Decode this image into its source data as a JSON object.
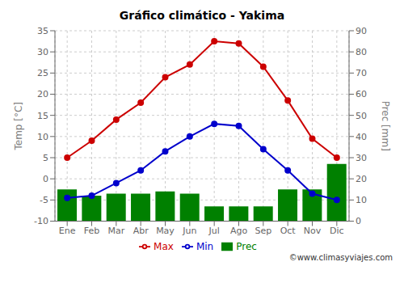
{
  "chart_data": {
    "type": "bar",
    "title": "Gráfico climático - Yakima",
    "categories": [
      "Ene",
      "Feb",
      "Mar",
      "Abr",
      "May",
      "Jun",
      "Jul",
      "Ago",
      "Sep",
      "Oct",
      "Nov",
      "Dic"
    ],
    "series": [
      {
        "name": "Prec",
        "type": "bar",
        "color": "#008000",
        "axis": "y2",
        "values": [
          15,
          12,
          13,
          13,
          14,
          13,
          7,
          7,
          7,
          15,
          15,
          27
        ]
      },
      {
        "name": "Min",
        "type": "line",
        "color": "#0000cc",
        "marker": "circle",
        "values": [
          -4.5,
          -4.0,
          -1.0,
          2.0,
          6.5,
          10.0,
          13.0,
          12.5,
          7.0,
          2.0,
          -3.5,
          -5.0
        ]
      },
      {
        "name": "Max",
        "type": "line",
        "color": "#cc0000",
        "marker": "circle",
        "values": [
          5.0,
          9.0,
          14.0,
          18.0,
          24.0,
          27.0,
          32.5,
          32.0,
          26.5,
          18.5,
          9.5,
          5.0
        ]
      }
    ],
    "ylabel": "Temp [°C]",
    "y2label": "Prec [mm]",
    "ylim": [
      -10,
      35
    ],
    "yticks": [
      -10,
      -5,
      0,
      5,
      10,
      15,
      20,
      25,
      30,
      35
    ],
    "y2lim": [
      0,
      90
    ],
    "y2ticks": [
      0,
      10,
      20,
      30,
      40,
      50,
      60,
      70,
      80,
      90
    ],
    "grid": true,
    "legend": "bottom",
    "annotations": [
      "©www.climasyviajes.com"
    ]
  }
}
